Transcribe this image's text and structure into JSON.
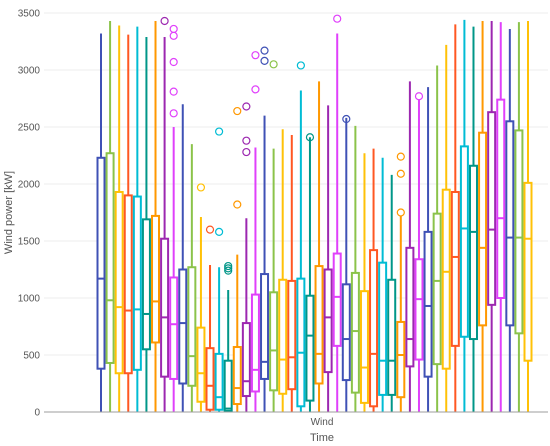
{
  "chart_data": {
    "type": "box",
    "xlabel": "Time",
    "ylabel": "Wind power [kW]",
    "category": "Wind",
    "ylim": [
      0,
      3500
    ],
    "yticks": [
      0,
      500,
      1000,
      1500,
      2000,
      2500,
      3000,
      3500
    ],
    "grid": true,
    "boxes": [
      {
        "color": "#3f51b5",
        "min": 0,
        "q1": 380,
        "median": 1170,
        "q3": 2230,
        "max": 3320,
        "outliers": []
      },
      {
        "color": "#8bc34a",
        "min": 0,
        "q1": 430,
        "median": 980,
        "q3": 2270,
        "max": 3430,
        "outliers": []
      },
      {
        "color": "#ffc107",
        "min": 0,
        "q1": 340,
        "median": 920,
        "q3": 1930,
        "max": 3390,
        "outliers": []
      },
      {
        "color": "#ff5722",
        "min": 0,
        "q1": 340,
        "median": 890,
        "q3": 1900,
        "max": 3310,
        "outliers": []
      },
      {
        "color": "#00bcd4",
        "min": 0,
        "q1": 370,
        "median": 900,
        "q3": 1890,
        "max": 3380,
        "outliers": []
      },
      {
        "color": "#009688",
        "min": 0,
        "q1": 550,
        "median": 860,
        "q3": 1690,
        "max": 3290,
        "outliers": []
      },
      {
        "color": "#ff9800",
        "min": 0,
        "q1": 610,
        "median": 970,
        "q3": 1720,
        "max": 3430,
        "outliers": []
      },
      {
        "color": "#9c27b0",
        "min": 0,
        "q1": 310,
        "median": 830,
        "q3": 1520,
        "max": 3290,
        "outliers": [
          3430
        ]
      },
      {
        "color": "#e040fb",
        "min": 0,
        "q1": 290,
        "median": 770,
        "q3": 1180,
        "max": 2500,
        "outliers": [
          2620,
          2810,
          3070,
          3300,
          3360
        ]
      },
      {
        "color": "#3f51b5",
        "min": 0,
        "q1": 250,
        "median": 780,
        "q3": 1250,
        "max": 2700,
        "outliers": []
      },
      {
        "color": "#8bc34a",
        "min": 0,
        "q1": 230,
        "median": 490,
        "q3": 1270,
        "max": 2350,
        "outliers": []
      },
      {
        "color": "#ffc107",
        "min": 0,
        "q1": 90,
        "median": 340,
        "q3": 740,
        "max": 1710,
        "outliers": [
          1970
        ]
      },
      {
        "color": "#ff5722",
        "min": 0,
        "q1": 20,
        "median": 230,
        "q3": 560,
        "max": 1290,
        "outliers": [
          1600
        ]
      },
      {
        "color": "#00bcd4",
        "min": 0,
        "q1": 20,
        "median": 130,
        "q3": 510,
        "max": 1270,
        "outliers": [
          1580,
          2460
        ]
      },
      {
        "color": "#009688",
        "min": 0,
        "q1": 10,
        "median": 30,
        "q3": 450,
        "max": 1070,
        "outliers": [
          1240,
          1260,
          1280
        ]
      },
      {
        "color": "#ff9800",
        "min": 0,
        "q1": 70,
        "median": 210,
        "q3": 570,
        "max": 1380,
        "outliers": [
          1820,
          2640
        ]
      },
      {
        "color": "#9c27b0",
        "min": 0,
        "q1": 140,
        "median": 270,
        "q3": 780,
        "max": 1700,
        "outliers": [
          2280,
          2380,
          2680
        ]
      },
      {
        "color": "#e040fb",
        "min": 0,
        "q1": 180,
        "median": 370,
        "q3": 1030,
        "max": 2320,
        "outliers": [
          2830,
          3130
        ]
      },
      {
        "color": "#3f51b5",
        "min": 0,
        "q1": 290,
        "median": 440,
        "q3": 1210,
        "max": 2600,
        "outliers": [
          3080,
          3170
        ]
      },
      {
        "color": "#8bc34a",
        "min": 0,
        "q1": 190,
        "median": 540,
        "q3": 1050,
        "max": 2310,
        "outliers": [
          3050
        ]
      },
      {
        "color": "#ffc107",
        "min": 0,
        "q1": 160,
        "median": 460,
        "q3": 1160,
        "max": 2480,
        "outliers": []
      },
      {
        "color": "#ff5722",
        "min": 0,
        "q1": 200,
        "median": 480,
        "q3": 1150,
        "max": 2430,
        "outliers": []
      },
      {
        "color": "#00bcd4",
        "min": 0,
        "q1": 50,
        "median": 520,
        "q3": 1170,
        "max": 2820,
        "outliers": [
          3040
        ]
      },
      {
        "color": "#009688",
        "min": 0,
        "q1": 100,
        "median": 670,
        "q3": 1020,
        "max": 2410,
        "outliers": [
          2410
        ]
      },
      {
        "color": "#ff9800",
        "min": 0,
        "q1": 250,
        "median": 510,
        "q3": 1280,
        "max": 2900,
        "outliers": []
      },
      {
        "color": "#9c27b0",
        "min": 0,
        "q1": 350,
        "median": 830,
        "q3": 1250,
        "max": 2690,
        "outliers": []
      },
      {
        "color": "#e040fb",
        "min": 0,
        "q1": 580,
        "median": 1010,
        "q3": 1390,
        "max": 3320,
        "outliers": [
          3450
        ]
      },
      {
        "color": "#3f51b5",
        "min": 0,
        "q1": 280,
        "median": 640,
        "q3": 1120,
        "max": 2580,
        "outliers": [
          2570
        ]
      },
      {
        "color": "#8bc34a",
        "min": 0,
        "q1": 170,
        "median": 710,
        "q3": 1220,
        "max": 2510,
        "outliers": []
      },
      {
        "color": "#ffc107",
        "min": 0,
        "q1": 80,
        "median": 390,
        "q3": 1060,
        "max": 2270,
        "outliers": []
      },
      {
        "color": "#ff5722",
        "min": 0,
        "q1": 50,
        "median": 510,
        "q3": 1420,
        "max": 2310,
        "outliers": []
      },
      {
        "color": "#00bcd4",
        "min": 0,
        "q1": 150,
        "median": 450,
        "q3": 1310,
        "max": 2230,
        "outliers": []
      },
      {
        "color": "#009688",
        "min": 0,
        "q1": 150,
        "median": 450,
        "q3": 1160,
        "max": 2080,
        "outliers": []
      },
      {
        "color": "#ff9800",
        "min": 0,
        "q1": 130,
        "median": 500,
        "q3": 790,
        "max": 1720,
        "outliers": [
          1750,
          2090,
          2240
        ]
      },
      {
        "color": "#9c27b0",
        "min": 0,
        "q1": 400,
        "median": 640,
        "q3": 1440,
        "max": 2900,
        "outliers": []
      },
      {
        "color": "#e040fb",
        "min": 0,
        "q1": 460,
        "median": 990,
        "q3": 1340,
        "max": 2740,
        "outliers": [
          2770
        ]
      },
      {
        "color": "#3f51b5",
        "min": 0,
        "q1": 310,
        "median": 930,
        "q3": 1580,
        "max": 2850,
        "outliers": []
      },
      {
        "color": "#8bc34a",
        "min": 0,
        "q1": 420,
        "median": 1150,
        "q3": 1740,
        "max": 3040,
        "outliers": []
      },
      {
        "color": "#ffc107",
        "min": 0,
        "q1": 380,
        "median": 1230,
        "q3": 1950,
        "max": 3220,
        "outliers": []
      },
      {
        "color": "#ff5722",
        "min": 0,
        "q1": 580,
        "median": 1360,
        "q3": 1930,
        "max": 3400,
        "outliers": []
      },
      {
        "color": "#00bcd4",
        "min": 0,
        "q1": 660,
        "median": 1610,
        "q3": 2330,
        "max": 3440,
        "outliers": []
      },
      {
        "color": "#009688",
        "min": 0,
        "q1": 640,
        "median": 1580,
        "q3": 2160,
        "max": 3380,
        "outliers": []
      },
      {
        "color": "#ff9800",
        "min": 0,
        "q1": 760,
        "median": 1440,
        "q3": 2450,
        "max": 3430,
        "outliers": []
      },
      {
        "color": "#9c27b0",
        "min": 0,
        "q1": 940,
        "median": 1600,
        "q3": 2630,
        "max": 3430,
        "outliers": []
      },
      {
        "color": "#e040fb",
        "min": 0,
        "q1": 1000,
        "median": 1700,
        "q3": 2740,
        "max": 3420,
        "outliers": []
      },
      {
        "color": "#3f51b5",
        "min": 0,
        "q1": 760,
        "median": 1530,
        "q3": 2550,
        "max": 3360,
        "outliers": []
      },
      {
        "color": "#8bc34a",
        "min": 0,
        "q1": 690,
        "median": 1530,
        "q3": 2470,
        "max": 3420,
        "outliers": []
      },
      {
        "color": "#ffc107",
        "min": 0,
        "q1": 450,
        "median": 1520,
        "q3": 2010,
        "max": 3430,
        "outliers": []
      }
    ]
  }
}
